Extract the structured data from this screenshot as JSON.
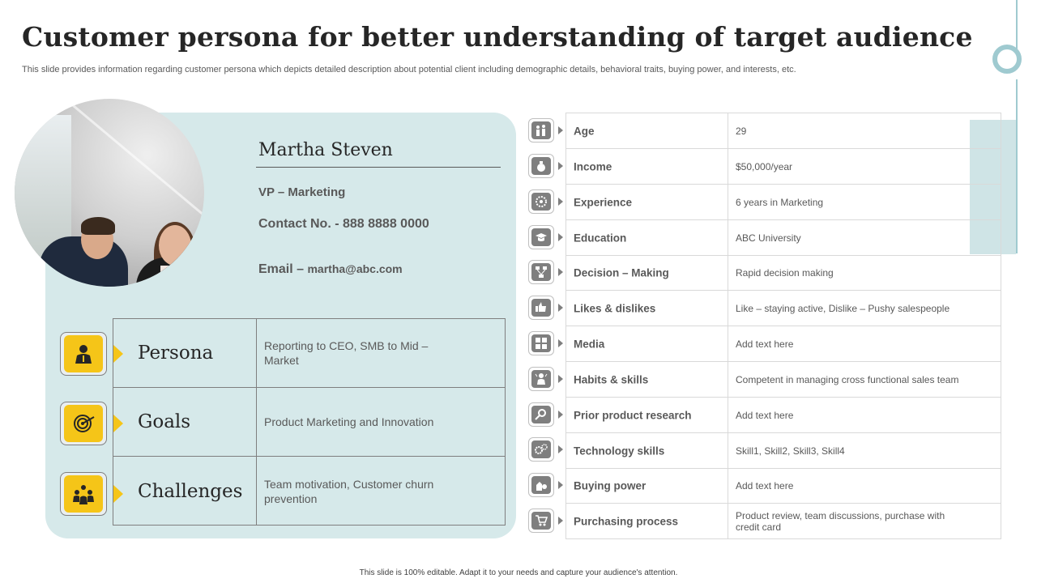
{
  "header": {
    "title": "Customer persona for better understanding of target audience",
    "subtitle": "This slide provides information regarding customer persona which depicts detailed description about potential client including demographic details, behavioral traits, buying power, and interests, etc."
  },
  "profile": {
    "name": "Martha Steven",
    "role": "VP – Marketing",
    "contact": "Contact No. - 888 8888 0000",
    "email_label": "Email – ",
    "email_value": "martha@abc.com"
  },
  "persona_rows": [
    {
      "label": "Persona",
      "text": "Reporting to CEO, SMB to Mid – Market",
      "icon": "business-person-icon"
    },
    {
      "label": "Goals",
      "text": "Product Marketing  and Innovation",
      "icon": "target-icon"
    },
    {
      "label": "Challenges",
      "text": "Team motivation,  Customer churn prevention",
      "icon": "team-icon"
    }
  ],
  "attributes": [
    {
      "key": "Age",
      "value": "29",
      "icon": "people-icon"
    },
    {
      "key": "Income",
      "value": "$50,000/year",
      "icon": "money-bag-icon"
    },
    {
      "key": "Experience",
      "value": "6 years in Marketing",
      "icon": "badge-icon"
    },
    {
      "key": "Education",
      "value": "ABC University",
      "icon": "graduation-cap-icon"
    },
    {
      "key": "Decision – Making",
      "value": "Rapid decision making",
      "icon": "flowchart-icon"
    },
    {
      "key": "Likes & dislikes",
      "value": "Like – staying active, Dislike – Pushy salespeople",
      "icon": "thumbs-icon"
    },
    {
      "key": "Media",
      "value": "Add text here",
      "icon": "media-icon"
    },
    {
      "key": "Habits & skills",
      "value": "Competent in managing cross functional sales team",
      "icon": "person-skills-icon"
    },
    {
      "key": "Prior product research",
      "value": "Add text here",
      "icon": "magnifier-icon"
    },
    {
      "key": "Technology skills",
      "value": "Skill1, Skill2, Skill3, Skill4",
      "icon": "gears-icon"
    },
    {
      "key": "Buying power",
      "value": "Add text here",
      "icon": "buying-power-icon"
    },
    {
      "key": "Purchasing process",
      "value": "Product review, team discussions, purchase with credit card",
      "icon": "cart-icon"
    }
  ],
  "footer": "This slide is 100% editable. Adapt it to your needs and capture your audience's attention.",
  "colors": {
    "accent_yellow": "#f5c518",
    "panel_teal": "#d6e9ea",
    "deco_teal": "#9fcad0"
  }
}
